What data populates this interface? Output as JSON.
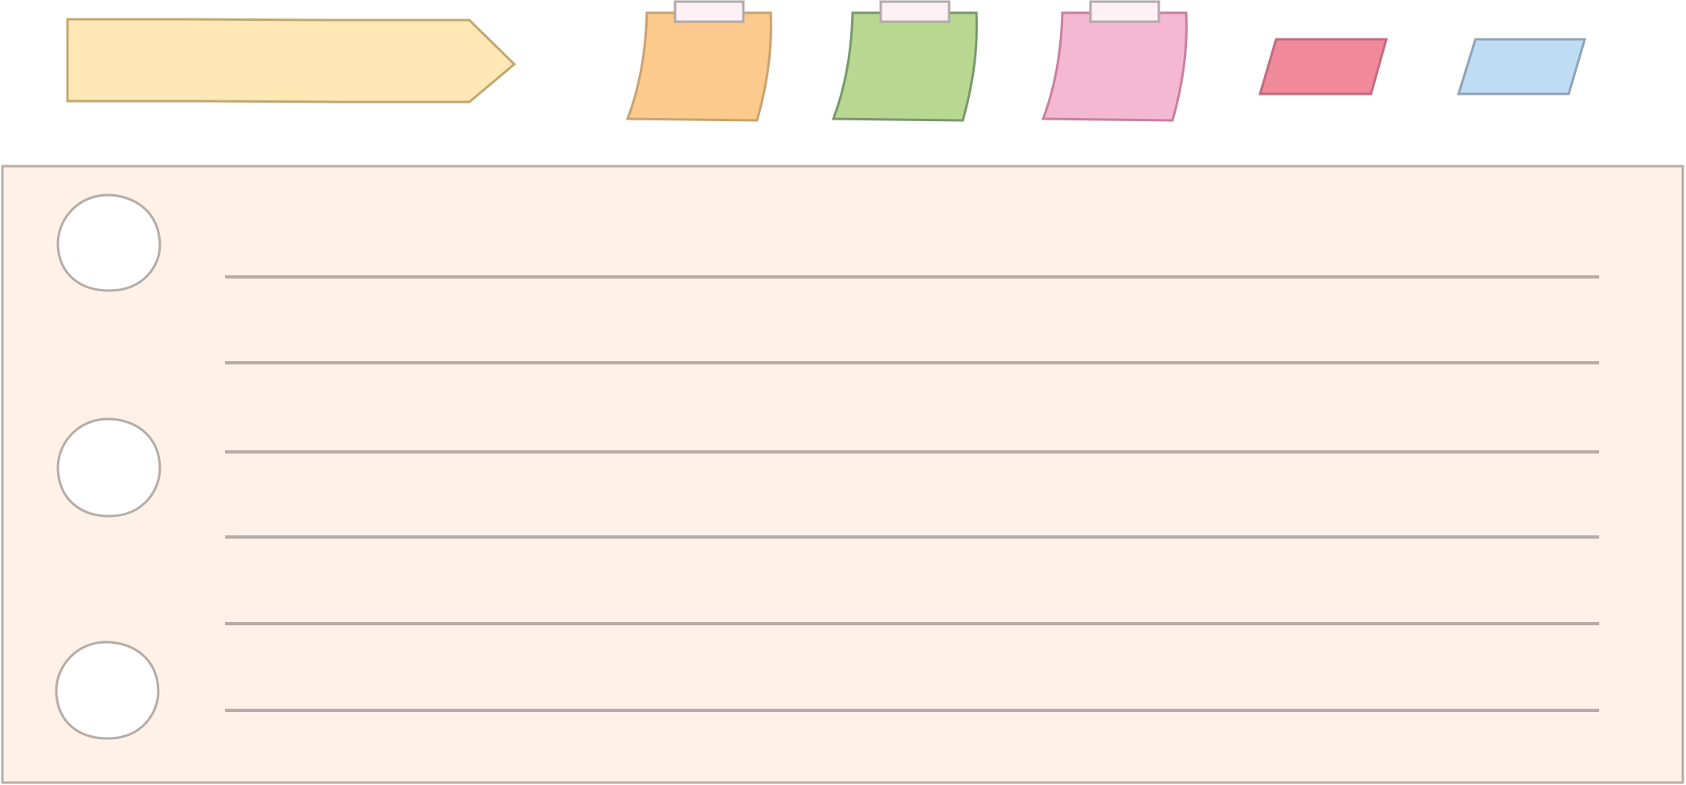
{
  "colors": {
    "background": "#ffffff",
    "arrow_fill": "#ffe8b6",
    "arrow_stroke": "#c3a86e",
    "note_orange_fill": "#fcca8d",
    "note_orange_stroke": "#c9a36f",
    "note_green_fill": "#b8d892",
    "note_green_stroke": "#77996c",
    "note_pink_fill": "#f5b8d2",
    "note_pink_stroke": "#c7819f",
    "tape_fill": "#fdf1f6",
    "tape_stroke": "#b4a9aa",
    "tag_red_fill": "#f08a9b",
    "tag_red_stroke": "#c46a80",
    "tag_blue_fill": "#bfdcf5",
    "tag_blue_stroke": "#8fa5b6",
    "paper_fill": "#fdf1e8",
    "paper_stroke": "#b6aca6",
    "hole_fill": "#ffffff",
    "hole_stroke": "#b6aca6",
    "rule_stroke": "#b6aca6"
  },
  "header": {
    "arrow_banner": {
      "text": ""
    },
    "sticky_notes": [
      {
        "id": "orange",
        "text": ""
      },
      {
        "id": "green",
        "text": ""
      },
      {
        "id": "pink",
        "text": ""
      }
    ],
    "tags": [
      {
        "id": "red",
        "text": ""
      },
      {
        "id": "blue",
        "text": ""
      }
    ]
  },
  "notebook_page": {
    "punch_hole_count": 3,
    "ruled_line_count": 6,
    "lines": [
      "",
      "",
      "",
      "",
      "",
      ""
    ]
  }
}
